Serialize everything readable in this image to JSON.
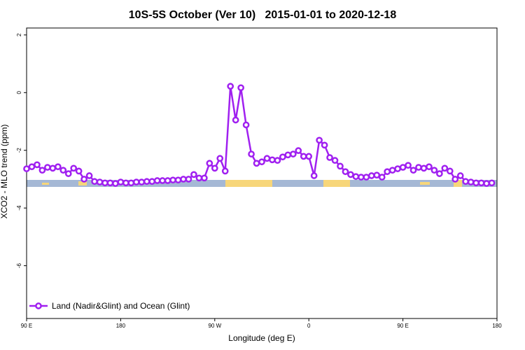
{
  "chart_data": {
    "type": "line",
    "title": "10S-5S October (Ver 10)   2015-01-01 to 2020-12-18",
    "x_label": "Longitude (deg E)",
    "y_label": "XCO2 - MLO trend (ppm)",
    "xlim": [
      90,
      540
    ],
    "ylim": [
      -7.83,
      2.24
    ],
    "xticks": [
      {
        "value": 90,
        "label": "90 E"
      },
      180,
      {
        "value": 270,
        "label": "90 W"
      },
      {
        "value": 360,
        "label": "0"
      },
      {
        "value": 450,
        "label": "90 E"
      },
      {
        "value": 540,
        "label": "180"
      }
    ],
    "yticks": [
      2,
      0,
      -2,
      -4,
      -6
    ],
    "legend_position": "bottom-left",
    "x": [
      90,
      95,
      100,
      105,
      110,
      115,
      120,
      125,
      130,
      135,
      140,
      145,
      150,
      155,
      160,
      165,
      170,
      175,
      180,
      185,
      190,
      195,
      200,
      205,
      210,
      215,
      220,
      225,
      230,
      235,
      240,
      245,
      250,
      255,
      260,
      265,
      270,
      275,
      280,
      285,
      290,
      295,
      300,
      305,
      310,
      315,
      320,
      325,
      330,
      335,
      340,
      345,
      350,
      355,
      360,
      365,
      370,
      375,
      380,
      385,
      390,
      395,
      400,
      405,
      410,
      415,
      420,
      425,
      430,
      435,
      440,
      445,
      450,
      455,
      460,
      465,
      470,
      475,
      480,
      485,
      490,
      495,
      500,
      505,
      510,
      515,
      520,
      525,
      530,
      535
    ],
    "series": [
      {
        "name": "Land (Nadir&Glint) and Ocean (Glint)",
        "color": "#a020f0",
        "values": [
          -2.64,
          -2.57,
          -2.5,
          -2.69,
          -2.59,
          -2.62,
          -2.57,
          -2.69,
          -2.81,
          -2.62,
          -2.72,
          -3.0,
          -2.88,
          -3.08,
          -3.1,
          -3.13,
          -3.13,
          -3.15,
          -3.1,
          -3.13,
          -3.13,
          -3.1,
          -3.1,
          -3.08,
          -3.08,
          -3.05,
          -3.05,
          -3.05,
          -3.03,
          -3.03,
          -3.0,
          -3.0,
          -2.84,
          -2.96,
          -2.96,
          -2.45,
          -2.62,
          -2.28,
          -2.72,
          0.22,
          -0.95,
          0.17,
          -1.12,
          -2.13,
          -2.45,
          -2.4,
          -2.28,
          -2.33,
          -2.35,
          -2.23,
          -2.16,
          -2.13,
          -2.01,
          -2.21,
          -2.21,
          -2.88,
          -1.65,
          -1.82,
          -2.25,
          -2.35,
          -2.55,
          -2.74,
          -2.84,
          -2.91,
          -2.93,
          -2.93,
          -2.88,
          -2.86,
          -2.93,
          -2.74,
          -2.69,
          -2.64,
          -2.59,
          -2.52,
          -2.69,
          -2.59,
          -2.62,
          -2.57,
          -2.69,
          -2.81,
          -2.62,
          -2.72,
          -3.0,
          -2.88,
          -3.08,
          -3.1,
          -3.13,
          -3.13,
          -3.15,
          -3.13
        ]
      }
    ]
  }
}
